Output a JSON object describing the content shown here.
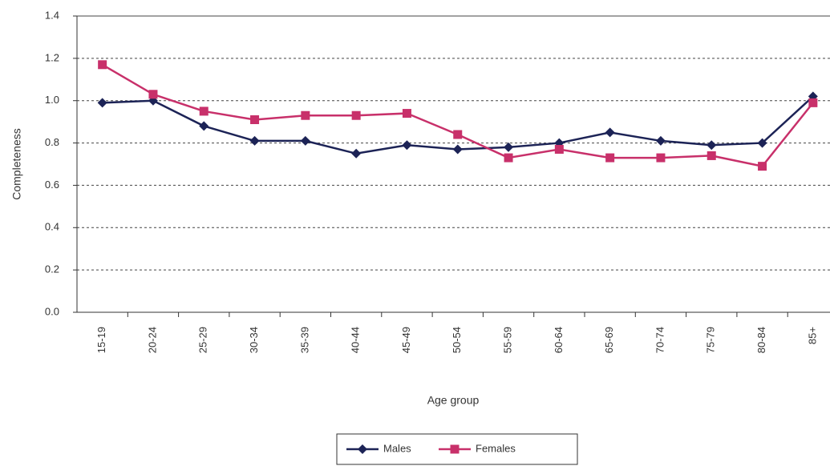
{
  "chart_data": {
    "type": "line",
    "x_label": "Age group",
    "y_label": "Completeness",
    "categories": [
      "15-19",
      "20-24",
      "25-29",
      "30-34",
      "35-39",
      "40-44",
      "45-49",
      "50-54",
      "55-59",
      "60-64",
      "65-69",
      "70-74",
      "75-79",
      "80-84",
      "85+"
    ],
    "series": [
      {
        "name": "Males",
        "color": "#1c2356",
        "marker": "diamond",
        "values": [
          0.99,
          1.0,
          0.88,
          0.81,
          0.81,
          0.75,
          0.79,
          0.77,
          0.78,
          0.8,
          0.85,
          0.81,
          0.79,
          0.8,
          1.02
        ]
      },
      {
        "name": "Females",
        "color": "#c8306a",
        "marker": "square",
        "values": [
          1.17,
          1.03,
          0.95,
          0.91,
          0.93,
          0.93,
          0.94,
          0.84,
          0.73,
          0.77,
          0.73,
          0.73,
          0.74,
          0.69,
          0.99
        ]
      }
    ],
    "ylim": [
      0,
      1.4
    ],
    "yticks": [
      {
        "value": 0,
        "label": "0.0"
      },
      0.2,
      0.4,
      0.6,
      0.8,
      {
        "value": 1,
        "label": "1.0"
      },
      1.2,
      1.4
    ],
    "grid": true,
    "legend": "bottom"
  }
}
